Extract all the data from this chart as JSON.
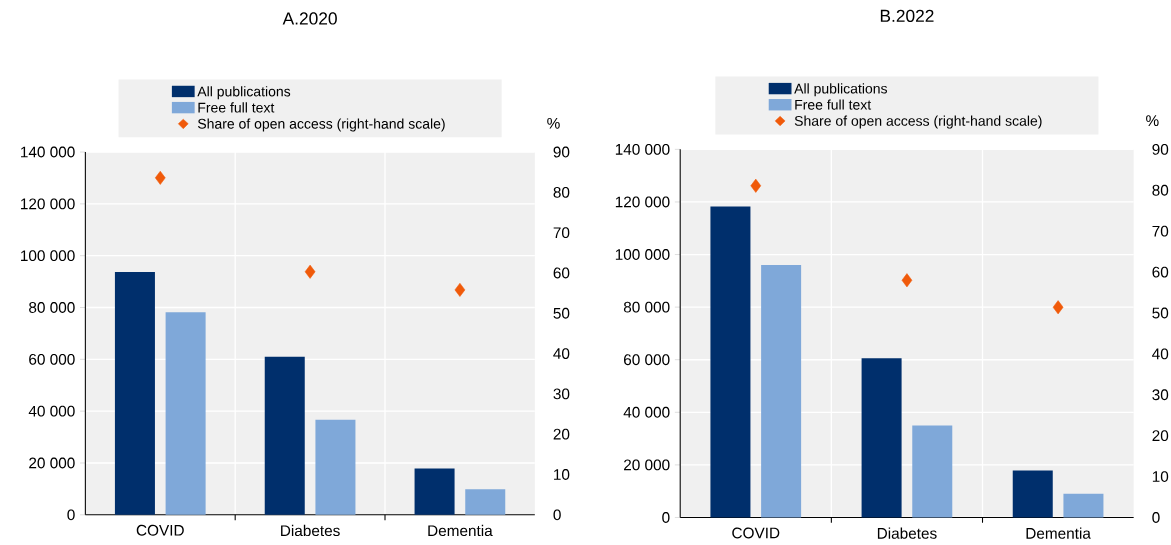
{
  "chart_data": [
    {
      "type": "bar",
      "title": "A.2020",
      "categories": [
        "COVID",
        "Diabetes",
        "Dementia"
      ],
      "series": [
        {
          "name": "All publications",
          "color": "#002f6c",
          "values": [
            93700,
            61000,
            17900
          ]
        },
        {
          "name": "Free full text",
          "color": "#7fa8d9",
          "values": [
            78200,
            36700,
            9900
          ]
        },
        {
          "name": "Share of open access (right-hand scale)",
          "type": "scatter",
          "axis": "y2",
          "marker": "diamond",
          "color": "#f05a0a",
          "values": [
            83.6,
            60.3,
            55.8
          ]
        }
      ],
      "ylim": [
        0,
        140000
      ],
      "yticks": [
        0,
        {
          "value": 20000,
          "label": "20 000"
        },
        {
          "value": 40000,
          "label": "40 000"
        },
        {
          "value": 60000,
          "label": "60 000"
        },
        {
          "value": 80000,
          "label": "80 000"
        },
        {
          "value": 100000,
          "label": "100 000"
        },
        {
          "value": 120000,
          "label": "120 000"
        },
        {
          "value": 140000,
          "label": "140 000"
        }
      ],
      "y2lim": [
        0,
        90
      ],
      "y2ticks": [
        0,
        10,
        20,
        30,
        40,
        50,
        60,
        70,
        80,
        90
      ],
      "y2label": "%",
      "grid": "y",
      "legend": "top"
    },
    {
      "type": "bar",
      "title": "B.2022",
      "categories": [
        "COVID",
        "Diabetes",
        "Dementia"
      ],
      "series": [
        {
          "name": "All publications",
          "color": "#002f6c",
          "values": [
            118300,
            60600,
            17900
          ]
        },
        {
          "name": "Free full text",
          "color": "#7fa8d9",
          "values": [
            96000,
            35000,
            9000
          ]
        },
        {
          "name": "Share of open access (right-hand scale)",
          "type": "scatter",
          "axis": "y2",
          "marker": "diamond",
          "color": "#f05a0a",
          "values": [
            81.1,
            58.0,
            51.4
          ]
        }
      ],
      "ylim": [
        0,
        140000
      ],
      "yticks": [
        0,
        {
          "value": 20000,
          "label": "20 000"
        },
        {
          "value": 40000,
          "label": "40 000"
        },
        {
          "value": 60000,
          "label": "60 000"
        },
        {
          "value": 80000,
          "label": "80 000"
        },
        {
          "value": 100000,
          "label": "100 000"
        },
        {
          "value": 120000,
          "label": "120 000"
        },
        {
          "value": 140000,
          "label": "140 000"
        }
      ],
      "y2lim": [
        0,
        90
      ],
      "y2ticks": [
        0,
        10,
        20,
        30,
        40,
        50,
        60,
        70,
        80,
        90
      ],
      "y2label": "%",
      "grid": "y",
      "legend": "top"
    }
  ]
}
